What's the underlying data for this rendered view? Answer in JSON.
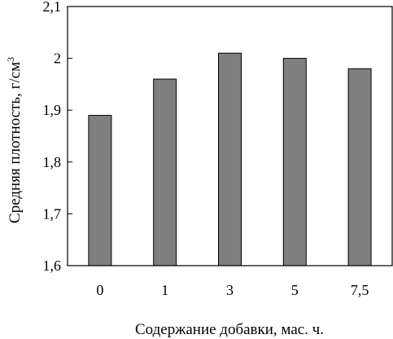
{
  "chart_data": {
    "type": "bar",
    "categories": [
      "0",
      "1",
      "3",
      "5",
      "7,5"
    ],
    "values": [
      1.89,
      1.96,
      2.01,
      2.0,
      1.98
    ],
    "xlabel": "Содержание добавки, мас. ч.",
    "ylabel": "Средняя плотность, г/см",
    "ylabel_superscript": "3",
    "ylim": [
      1.6,
      2.1
    ],
    "yticks": [
      1.6,
      1.7,
      1.8,
      1.9,
      2.0,
      2.1
    ],
    "ytick_labels": [
      "1,6",
      "1,7",
      "1,8",
      "1,9",
      "2",
      "2,1"
    ],
    "grid": false,
    "bar_color": "#7f7f7f",
    "bar_edge_color": "#000000"
  }
}
